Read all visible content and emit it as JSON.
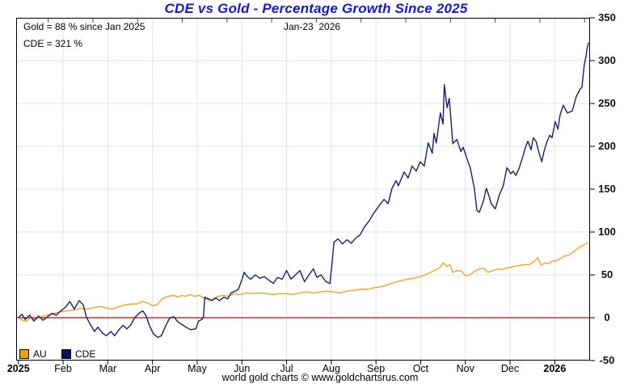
{
  "title": "CDE vs Gold - Percentage Growth Since 2025",
  "annotations": {
    "gold_summary": "Gold = 88 % since Jan 2025",
    "cde_summary": "CDE = 321 %",
    "date_label": "Jan-23  2026"
  },
  "legend": [
    {
      "label": "AU",
      "color": "#F0A202"
    },
    {
      "label": "CDE",
      "color": "#0D0D6B"
    }
  ],
  "footer": "world gold charts © www.goldchartsrus.com",
  "colors": {
    "title": "#1515E0",
    "au_line": "#F9A21B",
    "cde_line": "#1C1C78",
    "zero_line": "#DD0000",
    "grid": "#D9E6F3",
    "axis": "#000000",
    "top_tick": "#44446B"
  },
  "chart_data": {
    "type": "line",
    "title": "CDE vs Gold - Percentage Growth Since 2025",
    "x_unit": "months since Jan 1 2025",
    "xlim": [
      -0.05,
      12.79
    ],
    "ylim": [
      -50,
      350
    ],
    "grid": true,
    "zero_line": 0,
    "y_ticks": [
      -50,
      0,
      50,
      100,
      150,
      200,
      250,
      300,
      350
    ],
    "x_ticks": [
      {
        "m": 0,
        "label": "2025",
        "bold": true
      },
      {
        "m": 1,
        "label": "Feb"
      },
      {
        "m": 2,
        "label": "Mar"
      },
      {
        "m": 3,
        "label": "Apr"
      },
      {
        "m": 4,
        "label": "May"
      },
      {
        "m": 5,
        "label": "Jun"
      },
      {
        "m": 6,
        "label": "Jul"
      },
      {
        "m": 7,
        "label": "Aug"
      },
      {
        "m": 8,
        "label": "Sep"
      },
      {
        "m": 9,
        "label": "Oct"
      },
      {
        "m": 10,
        "label": "Nov"
      },
      {
        "m": 11,
        "label": "Dec"
      },
      {
        "m": 12,
        "label": "2026",
        "bold": true
      }
    ],
    "series": [
      {
        "name": "AU",
        "color": "#F9A21B",
        "final_value_pct": 88,
        "points": [
          [
            0,
            0
          ],
          [
            0.1,
            -3
          ],
          [
            0.18,
            -4
          ],
          [
            0.28,
            0
          ],
          [
            0.38,
            -2
          ],
          [
            0.5,
            1
          ],
          [
            0.65,
            3
          ],
          [
            0.8,
            5
          ],
          [
            0.95,
            7
          ],
          [
            1.1,
            8
          ],
          [
            1.25,
            9
          ],
          [
            1.4,
            11
          ],
          [
            1.54,
            10
          ],
          [
            1.7,
            12
          ],
          [
            1.85,
            13
          ],
          [
            2.0,
            11
          ],
          [
            2.1,
            10
          ],
          [
            2.25,
            13
          ],
          [
            2.4,
            15
          ],
          [
            2.52,
            16
          ],
          [
            2.65,
            16
          ],
          [
            2.78,
            19
          ],
          [
            2.9,
            17
          ],
          [
            3.0,
            14
          ],
          [
            3.1,
            15
          ],
          [
            3.22,
            22
          ],
          [
            3.35,
            25
          ],
          [
            3.48,
            26
          ],
          [
            3.57,
            24
          ],
          [
            3.66,
            26
          ],
          [
            3.75,
            25
          ],
          [
            3.84,
            27
          ],
          [
            3.93,
            25
          ],
          [
            4.05,
            26
          ],
          [
            4.19,
            22
          ],
          [
            4.29,
            20
          ],
          [
            4.42,
            24
          ],
          [
            4.56,
            26
          ],
          [
            4.7,
            25
          ],
          [
            4.83,
            28
          ],
          [
            4.95,
            27
          ],
          [
            5.1,
            29
          ],
          [
            5.25,
            28
          ],
          [
            5.4,
            29
          ],
          [
            5.55,
            28
          ],
          [
            5.7,
            27
          ],
          [
            5.85,
            28
          ],
          [
            6.0,
            28
          ],
          [
            6.15,
            27
          ],
          [
            6.3,
            29
          ],
          [
            6.45,
            30
          ],
          [
            6.6,
            29
          ],
          [
            6.75,
            30
          ],
          [
            6.9,
            31
          ],
          [
            7.05,
            30
          ],
          [
            7.2,
            29
          ],
          [
            7.35,
            31
          ],
          [
            7.5,
            32
          ],
          [
            7.65,
            33
          ],
          [
            7.8,
            33
          ],
          [
            7.95,
            35
          ],
          [
            8.1,
            36
          ],
          [
            8.25,
            38
          ],
          [
            8.4,
            41
          ],
          [
            8.55,
            43
          ],
          [
            8.7,
            45
          ],
          [
            8.85,
            46
          ],
          [
            9.0,
            48
          ],
          [
            9.15,
            51
          ],
          [
            9.3,
            55
          ],
          [
            9.42,
            58
          ],
          [
            9.51,
            64
          ],
          [
            9.58,
            60
          ],
          [
            9.65,
            62
          ],
          [
            9.72,
            53
          ],
          [
            9.82,
            55
          ],
          [
            9.92,
            54
          ],
          [
            10.0,
            49
          ],
          [
            10.1,
            50
          ],
          [
            10.2,
            54
          ],
          [
            10.32,
            57
          ],
          [
            10.41,
            58
          ],
          [
            10.5,
            53
          ],
          [
            10.62,
            55
          ],
          [
            10.72,
            57
          ],
          [
            10.82,
            56
          ],
          [
            10.92,
            58
          ],
          [
            11.02,
            59
          ],
          [
            11.12,
            60
          ],
          [
            11.22,
            61
          ],
          [
            11.32,
            62
          ],
          [
            11.44,
            62
          ],
          [
            11.55,
            66
          ],
          [
            11.62,
            70
          ],
          [
            11.7,
            61
          ],
          [
            11.78,
            64
          ],
          [
            11.86,
            63
          ],
          [
            11.94,
            66
          ],
          [
            12.02,
            66
          ],
          [
            12.12,
            69
          ],
          [
            12.22,
            72
          ],
          [
            12.32,
            73
          ],
          [
            12.45,
            78
          ],
          [
            12.55,
            82
          ],
          [
            12.66,
            85
          ],
          [
            12.76,
            88
          ]
        ]
      },
      {
        "name": "CDE",
        "color": "#1C1C78",
        "final_value_pct": 321,
        "points": [
          [
            0,
            0
          ],
          [
            0.08,
            4
          ],
          [
            0.15,
            -2
          ],
          [
            0.25,
            3
          ],
          [
            0.35,
            -4
          ],
          [
            0.45,
            2
          ],
          [
            0.55,
            -3
          ],
          [
            0.65,
            1
          ],
          [
            0.75,
            5
          ],
          [
            0.85,
            3
          ],
          [
            0.95,
            8
          ],
          [
            1.05,
            12
          ],
          [
            1.15,
            19
          ],
          [
            1.25,
            10
          ],
          [
            1.36,
            20
          ],
          [
            1.45,
            15
          ],
          [
            1.52,
            1
          ],
          [
            1.6,
            -7
          ],
          [
            1.7,
            -16
          ],
          [
            1.78,
            -11
          ],
          [
            1.88,
            -18
          ],
          [
            1.97,
            -21
          ],
          [
            2.07,
            -16
          ],
          [
            2.15,
            -21
          ],
          [
            2.25,
            -14
          ],
          [
            2.34,
            -9
          ],
          [
            2.43,
            -13
          ],
          [
            2.52,
            -8
          ],
          [
            2.6,
            0
          ],
          [
            2.7,
            5
          ],
          [
            2.78,
            8
          ],
          [
            2.85,
            3
          ],
          [
            2.93,
            -9
          ],
          [
            3.02,
            -19
          ],
          [
            3.12,
            -23
          ],
          [
            3.2,
            -21
          ],
          [
            3.3,
            -9
          ],
          [
            3.39,
            0
          ],
          [
            3.48,
            1
          ],
          [
            3.57,
            -5
          ],
          [
            3.66,
            -8
          ],
          [
            3.75,
            -11
          ],
          [
            3.85,
            -14
          ],
          [
            3.97,
            -13
          ],
          [
            4.03,
            -4
          ],
          [
            4.1,
            -2
          ],
          [
            4.14,
            0
          ],
          [
            4.17,
            24
          ],
          [
            4.25,
            22
          ],
          [
            4.33,
            20
          ],
          [
            4.42,
            23
          ],
          [
            4.5,
            20
          ],
          [
            4.6,
            24
          ],
          [
            4.68,
            22
          ],
          [
            4.76,
            29
          ],
          [
            4.85,
            31
          ],
          [
            4.92,
            33
          ],
          [
            5.0,
            44
          ],
          [
            5.05,
            53
          ],
          [
            5.12,
            48
          ],
          [
            5.2,
            45
          ],
          [
            5.3,
            50
          ],
          [
            5.4,
            46
          ],
          [
            5.5,
            48
          ],
          [
            5.6,
            44
          ],
          [
            5.7,
            40
          ],
          [
            5.8,
            47
          ],
          [
            5.9,
            45
          ],
          [
            6.0,
            55
          ],
          [
            6.1,
            45
          ],
          [
            6.2,
            50
          ],
          [
            6.3,
            55
          ],
          [
            6.4,
            42
          ],
          [
            6.5,
            50
          ],
          [
            6.6,
            57
          ],
          [
            6.68,
            47
          ],
          [
            6.77,
            50
          ],
          [
            6.88,
            42
          ],
          [
            6.97,
            40
          ],
          [
            7.03,
            70
          ],
          [
            7.06,
            88
          ],
          [
            7.15,
            92
          ],
          [
            7.25,
            86
          ],
          [
            7.35,
            91
          ],
          [
            7.45,
            87
          ],
          [
            7.55,
            93
          ],
          [
            7.65,
            97
          ],
          [
            7.73,
            105
          ],
          [
            7.85,
            113
          ],
          [
            7.95,
            122
          ],
          [
            8.09,
            132
          ],
          [
            8.18,
            138
          ],
          [
            8.27,
            133
          ],
          [
            8.36,
            151
          ],
          [
            8.45,
            160
          ],
          [
            8.5,
            154
          ],
          [
            8.63,
            170
          ],
          [
            8.72,
            163
          ],
          [
            8.81,
            177
          ],
          [
            8.9,
            171
          ],
          [
            8.99,
            182
          ],
          [
            9.08,
            177
          ],
          [
            9.17,
            204
          ],
          [
            9.26,
            192
          ],
          [
            9.3,
            215
          ],
          [
            9.35,
            204
          ],
          [
            9.44,
            239
          ],
          [
            9.5,
            226
          ],
          [
            9.53,
            272
          ],
          [
            9.59,
            245
          ],
          [
            9.64,
            256
          ],
          [
            9.72,
            203
          ],
          [
            9.81,
            208
          ],
          [
            9.9,
            194
          ],
          [
            9.95,
            199
          ],
          [
            10.04,
            185
          ],
          [
            10.11,
            175
          ],
          [
            10.2,
            151
          ],
          [
            10.26,
            125
          ],
          [
            10.31,
            123
          ],
          [
            10.4,
            135
          ],
          [
            10.47,
            151
          ],
          [
            10.53,
            142
          ],
          [
            10.58,
            133
          ],
          [
            10.67,
            127
          ],
          [
            10.76,
            143
          ],
          [
            10.85,
            154
          ],
          [
            10.93,
            175
          ],
          [
            11.02,
            168
          ],
          [
            11.07,
            171
          ],
          [
            11.13,
            166
          ],
          [
            11.2,
            174
          ],
          [
            11.29,
            189
          ],
          [
            11.34,
            198
          ],
          [
            11.4,
            206
          ],
          [
            11.47,
            196
          ],
          [
            11.52,
            210
          ],
          [
            11.58,
            206
          ],
          [
            11.65,
            192
          ],
          [
            11.71,
            182
          ],
          [
            11.76,
            194
          ],
          [
            11.83,
            206
          ],
          [
            11.89,
            213
          ],
          [
            11.94,
            210
          ],
          [
            12.01,
            229
          ],
          [
            12.07,
            220
          ],
          [
            12.12,
            237
          ],
          [
            12.19,
            248
          ],
          [
            12.28,
            239
          ],
          [
            12.39,
            241
          ],
          [
            12.48,
            258
          ],
          [
            12.57,
            267
          ],
          [
            12.61,
            269
          ],
          [
            12.66,
            295
          ],
          [
            12.7,
            305
          ],
          [
            12.73,
            316
          ],
          [
            12.76,
            321
          ]
        ]
      }
    ]
  }
}
